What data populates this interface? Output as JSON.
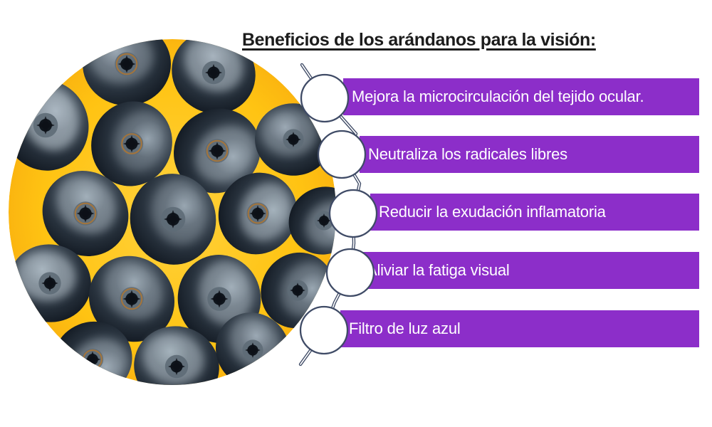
{
  "title": {
    "text": "Beneficios de los arándanos para la visión:"
  },
  "benefits": [
    {
      "label": "Mejora la microcirculación del tejido ocular.",
      "icon": "eye-photo-icon"
    },
    {
      "label": "Neutraliza los radicales libres",
      "icon": "eye-photo-icon"
    },
    {
      "label": "Reducir la exudación inflamatoria",
      "icon": "eye-photo-icon"
    },
    {
      "label": "Aliviar la fatiga visual",
      "icon": "eye-photo-icon"
    },
    {
      "label": "Filtro de luz azul",
      "icon": "eye-photo-icon"
    }
  ],
  "left_image": {
    "name": "blueberries-photo",
    "subject": "arándanos sobre fondo amarillo"
  },
  "colors": {
    "background": "#FFFFFF",
    "bar": "#8C2EC9",
    "bar_text": "#FFFFFF",
    "title_text": "#1C1C1C",
    "photo_yellow": "#FFC312",
    "photo_yellow_deep": "#F2990D",
    "berry_dark": "#27313C",
    "berry_frost": "#C6D2DA",
    "thread": "#3F4B66"
  }
}
